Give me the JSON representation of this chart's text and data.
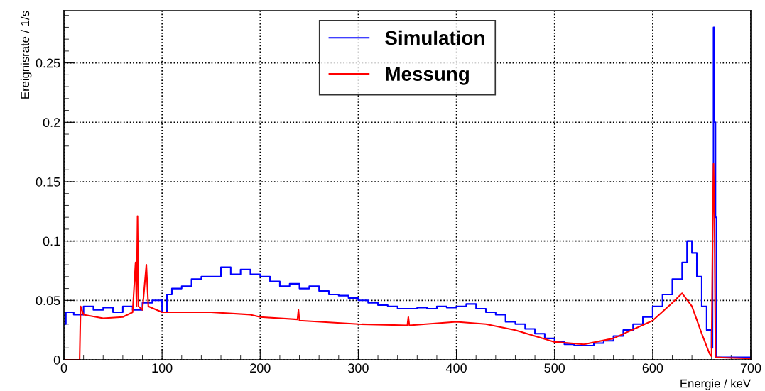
{
  "chart_data": {
    "type": "line",
    "xlabel": "Energie / keV",
    "ylabel": "Ereignisrate / 1/s",
    "xlim": [
      0,
      700
    ],
    "xticks": [
      0,
      100,
      200,
      300,
      400,
      500,
      600,
      700
    ],
    "ylim": [
      0,
      0.294
    ],
    "yticks": [
      0,
      0.05,
      0.1,
      0.15,
      0.2,
      0.25
    ],
    "grid": true,
    "legend": "top",
    "marker": "none",
    "line_style": "solid",
    "series": [
      {
        "name": "Simulation",
        "type": "step",
        "color": "#0000ff",
        "x": [
          0,
          2,
          10,
          20,
          30,
          40,
          50,
          60,
          70,
          80,
          90,
          100,
          105,
          110,
          120,
          130,
          140,
          150,
          160,
          170,
          180,
          190,
          200,
          210,
          220,
          230,
          240,
          250,
          260,
          270,
          280,
          290,
          300,
          310,
          320,
          330,
          340,
          350,
          360,
          370,
          380,
          390,
          400,
          410,
          420,
          430,
          440,
          450,
          460,
          470,
          480,
          490,
          500,
          510,
          520,
          530,
          540,
          550,
          560,
          570,
          580,
          590,
          600,
          610,
          620,
          630,
          635,
          640,
          645,
          650,
          655,
          660,
          661,
          662,
          663,
          664,
          665,
          700
        ],
        "values": [
          0.03,
          0.04,
          0.038,
          0.045,
          0.042,
          0.044,
          0.04,
          0.045,
          0.042,
          0.048,
          0.05,
          0.04,
          0.055,
          0.06,
          0.062,
          0.068,
          0.07,
          0.07,
          0.078,
          0.072,
          0.076,
          0.072,
          0.07,
          0.066,
          0.062,
          0.064,
          0.06,
          0.062,
          0.058,
          0.055,
          0.054,
          0.052,
          0.05,
          0.048,
          0.046,
          0.045,
          0.043,
          0.043,
          0.044,
          0.043,
          0.045,
          0.044,
          0.045,
          0.047,
          0.043,
          0.04,
          0.038,
          0.032,
          0.03,
          0.026,
          0.022,
          0.018,
          0.015,
          0.013,
          0.012,
          0.012,
          0.014,
          0.016,
          0.02,
          0.025,
          0.03,
          0.036,
          0.045,
          0.055,
          0.068,
          0.082,
          0.1,
          0.09,
          0.07,
          0.045,
          0.025,
          0.01,
          0.135,
          0.28,
          0.2,
          0.12,
          0.002,
          0.001
        ]
      },
      {
        "name": "Messung",
        "color": "#ff0000",
        "x": [
          0,
          16,
          17,
          20,
          40,
          60,
          70,
          73,
          74,
          75,
          76,
          80,
          84,
          86,
          100,
          150,
          190,
          200,
          238,
          239,
          240,
          300,
          350,
          351,
          352,
          400,
          430,
          460,
          500,
          530,
          560,
          600,
          620,
          630,
          640,
          650,
          658,
          660,
          661,
          662,
          663,
          664,
          700
        ],
        "values": [
          0,
          0,
          0.045,
          0.038,
          0.035,
          0.036,
          0.04,
          0.082,
          0.045,
          0.121,
          0.045,
          0.042,
          0.08,
          0.045,
          0.04,
          0.04,
          0.038,
          0.036,
          0.034,
          0.042,
          0.033,
          0.03,
          0.029,
          0.036,
          0.029,
          0.032,
          0.03,
          0.025,
          0.015,
          0.013,
          0.018,
          0.033,
          0.048,
          0.056,
          0.045,
          0.022,
          0.005,
          0.003,
          0.1,
          0.165,
          0.12,
          0.002,
          0.001
        ]
      }
    ]
  }
}
